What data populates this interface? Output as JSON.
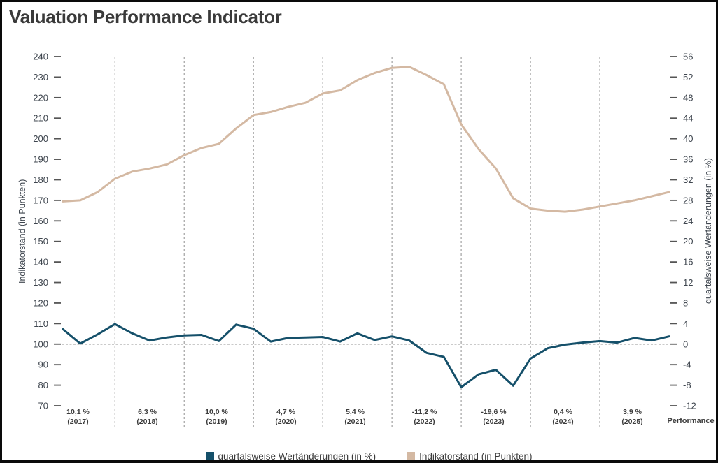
{
  "title": "Valuation Performance Indicator",
  "legend": [
    {
      "label": "quartalsweise Wertänderungen (in %)",
      "color": "#15506a",
      "swatch": "dark-teal-square"
    },
    {
      "label": "Indikatorstand (in Punkten)",
      "color": "#d4b9a3",
      "swatch": "tan-square"
    }
  ],
  "chart_data": {
    "type": "line",
    "title": "Valuation Performance Indicator",
    "x_unit": "quarters 2017Q1 - 2025Q4",
    "grid": "vertical dashed gridlines at year boundaries; dashed horizontal baseline at 100 points / 0 %",
    "left_axis": {
      "label": "Indikatorstand (in Punkten)",
      "min": 70,
      "max": 240,
      "step": 10
    },
    "right_axis": {
      "label": "quartalsweise Wertänderungen (in %)",
      "min": -12,
      "max": 56,
      "step": 4
    },
    "baseline_left_value": 100,
    "x_axis": {
      "caption": "Performance",
      "labels": [
        {
          "performance": "10,1 %",
          "year": "(2017)"
        },
        {
          "performance": "6,3 %",
          "year": "(2018)"
        },
        {
          "performance": "10,0 %",
          "year": "(2019)"
        },
        {
          "performance": "4,7 %",
          "year": "(2020)"
        },
        {
          "performance": "5,4 %",
          "year": "(2021)"
        },
        {
          "performance": "-11,2 %",
          "year": "(2022)"
        },
        {
          "performance": "-19,6 %",
          "year": "(2023)"
        },
        {
          "performance": "0,4 %",
          "year": "(2024)"
        },
        {
          "performance": "3,9 %",
          "year": "(2025)"
        }
      ]
    },
    "series": [
      {
        "name": "Indikatorstand (in Punkten)",
        "axis": "left",
        "color": "#d4b9a3",
        "values": [
          169.5,
          170,
          174,
          180.5,
          184,
          185.5,
          187.5,
          192,
          195.5,
          197.5,
          205,
          211.5,
          213,
          215.5,
          217.5,
          222,
          223.5,
          228.5,
          232,
          234.5,
          235,
          231,
          226.5,
          207,
          195,
          185.5,
          171,
          166,
          165,
          164.5,
          165.5,
          167,
          168.5,
          170,
          172,
          174
        ]
      },
      {
        "name": "quartalsweise Wertänderungen (in %)",
        "axis": "right",
        "color": "#15506a",
        "values": [
          2.9,
          0.1,
          1.9,
          3.9,
          2.1,
          0.7,
          1.3,
          1.7,
          1.8,
          0.6,
          3.8,
          3.0,
          0.5,
          1.2,
          1.3,
          1.4,
          0.5,
          2.1,
          0.8,
          1.5,
          0.7,
          -1.7,
          -2.5,
          -8.4,
          -5.9,
          -5.0,
          -8.1,
          -2.8,
          -0.8,
          -0.1,
          0.3,
          0.6,
          0.3,
          1.2,
          0.7,
          1.5
        ]
      }
    ]
  }
}
